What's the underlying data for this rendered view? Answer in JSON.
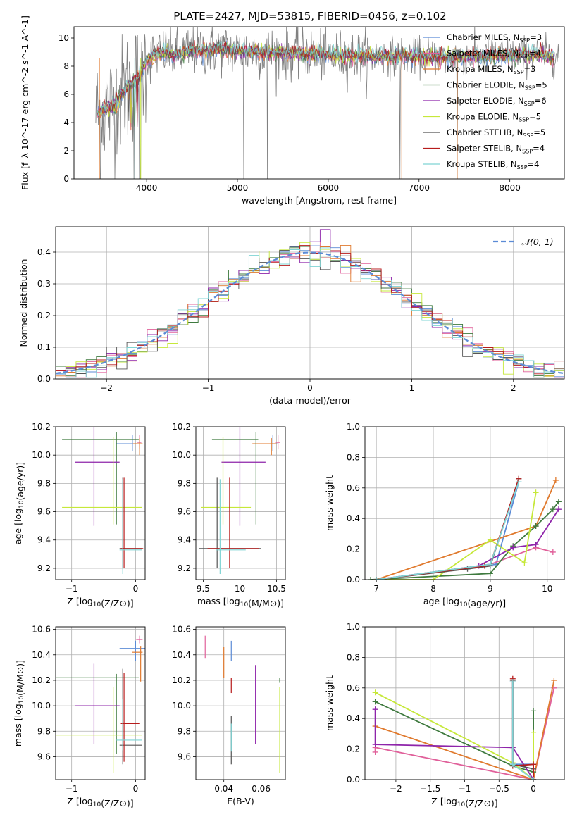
{
  "figure_title": "PLATE=2427, MJD=53815, FIBERID=0456, z=0.102",
  "colors": {
    "Chabrier MILES": "#5b8bd6",
    "Salpeter MILES": "#e0609a",
    "Kroupa MILES": "#e07a2e",
    "Chabrier ELODIE": "#3f7a3f",
    "Salpeter ELODIE": "#8e24aa",
    "Kroupa ELODIE": "#c6e83a",
    "Chabrier STELIB": "#555555",
    "Salpeter STELIB": "#b71c1c",
    "Kroupa STELIB": "#7fd4d4",
    "normal_curve": "#5b8bd6",
    "data_gray": "#808080"
  },
  "chart_data": [
    {
      "id": "spectrum",
      "type": "line",
      "title": "PLATE=2427, MJD=53815, FIBERID=0456, z=0.102",
      "xlabel": "wavelength [Angstrom, rest frame]",
      "ylabel": "Flux [f_λ 10^-17 erg cm^-2 s^-1 A^-1]",
      "xlim": [
        3200,
        8600
      ],
      "ylim": [
        0,
        10.8
      ],
      "xticks": [
        4000,
        5000,
        6000,
        7000,
        8000
      ],
      "yticks": [
        0,
        2,
        4,
        6,
        8,
        10
      ],
      "grid": false,
      "legend_position": "right",
      "legend": [
        {
          "name": "Chabrier MILES",
          "label": "Chabrier MILES, N",
          "sub": "SSP",
          "tail": "=3"
        },
        {
          "name": "Salpeter MILES",
          "label": "Salpeter MILES, N",
          "sub": "SSP",
          "tail": "=4"
        },
        {
          "name": "Kroupa MILES",
          "label": "Kroupa MILES, N",
          "sub": "SSP",
          "tail": "=3"
        },
        {
          "name": "Chabrier ELODIE",
          "label": "Chabrier ELODIE, N",
          "sub": "SSP",
          "tail": "=5"
        },
        {
          "name": "Salpeter ELODIE",
          "label": "Salpeter ELODIE, N",
          "sub": "SSP",
          "tail": "=6"
        },
        {
          "name": "Kroupa ELODIE",
          "label": "Kroupa ELODIE, N",
          "sub": "SSP",
          "tail": "=5"
        },
        {
          "name": "Chabrier STELIB",
          "label": "Chabrier STELIB, N",
          "sub": "SSP",
          "tail": "=5"
        },
        {
          "name": "Salpeter STELIB",
          "label": "Salpeter STELIB, N",
          "sub": "SSP",
          "tail": "=4"
        },
        {
          "name": "Kroupa STELIB",
          "label": "Kroupa STELIB, N",
          "sub": "SSP",
          "tail": "=4"
        }
      ],
      "continuum_model": {
        "x": [
          3450,
          3550,
          3650,
          3700,
          3800,
          3900,
          3950,
          4000,
          4100,
          4200,
          4300,
          4500,
          4800,
          5000,
          5300,
          5600,
          6000,
          6300,
          6600,
          6900,
          7100,
          7300,
          7500,
          7700,
          8000,
          8300,
          8500
        ],
        "y": [
          4.6,
          5.0,
          5.2,
          5.8,
          6.6,
          7.1,
          7.6,
          8.4,
          8.9,
          9.0,
          8.8,
          9.1,
          9.2,
          9.1,
          9.0,
          8.9,
          8.8,
          8.7,
          8.7,
          8.7,
          8.7,
          8.6,
          8.7,
          8.7,
          8.8,
          8.8,
          8.7
        ]
      },
      "data_noise_amplitude": 1.5,
      "deep_drops_x": [
        3490,
        3860,
        3930,
        5070,
        5330,
        6790,
        7420
      ]
    },
    {
      "id": "residuals",
      "type": "step",
      "xlabel": "(data-model)/error",
      "ylabel": "Normed distribution",
      "xlim": [
        -2.5,
        2.5
      ],
      "ylim": [
        0,
        0.48
      ],
      "xticks": [
        -2,
        -1,
        0,
        1,
        2
      ],
      "yticks": [
        0.0,
        0.1,
        0.2,
        0.3,
        0.4
      ],
      "grid": true,
      "legend_position": "top-right",
      "legend_label": "𝒩(0, 1)",
      "bin_width": 0.1
    },
    {
      "id": "age_vs_Z",
      "type": "errorbar",
      "xlabel": "Z [log10(Z/Z⊙)]",
      "ylabel": "age [log10(age/yr)]",
      "xlim": [
        -1.25,
        0.15
      ],
      "ylim": [
        9.12,
        10.2
      ],
      "xticks": [
        -1,
        0
      ],
      "yticks": [
        9.2,
        9.4,
        9.6,
        9.8,
        10.0,
        10.2
      ],
      "grid": true,
      "points": [
        {
          "series": "Chabrier MILES",
          "x": -0.05,
          "xerr": [
            0.25,
            0.15
          ],
          "y": 10.08,
          "yerr": [
            0.05,
            0.06
          ]
        },
        {
          "series": "Salpeter MILES",
          "x": 0.06,
          "xerr": [
            0.03,
            0.03
          ],
          "y": 10.09,
          "yerr": [
            0.05,
            0.05
          ]
        },
        {
          "series": "Kroupa MILES",
          "x": 0.06,
          "xerr": [
            0.1,
            0.05
          ],
          "y": 10.08,
          "yerr": [
            0.08,
            0.04
          ]
        },
        {
          "series": "Chabrier ELODIE",
          "x": -0.3,
          "xerr": [
            0.85,
            0.35
          ],
          "y": 10.11,
          "yerr": [
            0.6,
            0.05
          ]
        },
        {
          "series": "Salpeter ELODIE",
          "x": -0.65,
          "xerr": [
            0.3,
            0.4
          ],
          "y": 9.95,
          "yerr": [
            0.45,
            0.25
          ]
        },
        {
          "series": "Kroupa ELODIE",
          "x": -0.35,
          "xerr": [
            0.8,
            0.45
          ],
          "y": 9.63,
          "yerr": [
            0.12,
            0.5
          ]
        },
        {
          "series": "Chabrier STELIB",
          "x": -0.2,
          "xerr": [
            0.05,
            0.3
          ],
          "y": 9.34,
          "yerr": [
            0.14,
            0.5
          ]
        },
        {
          "series": "Salpeter STELIB",
          "x": -0.18,
          "xerr": [
            0.05,
            0.3
          ],
          "y": 9.34,
          "yerr": [
            0.14,
            0.5
          ]
        },
        {
          "series": "Kroupa STELIB",
          "x": -0.2,
          "xerr": [
            0.05,
            0.3
          ],
          "y": 9.33,
          "yerr": [
            0.17,
            0.5
          ]
        }
      ]
    },
    {
      "id": "age_vs_mass",
      "type": "errorbar",
      "xlabel": "mass [log10(M/M⊙)]",
      "ylabel": "",
      "xlim": [
        9.4,
        10.62
      ],
      "ylim": [
        9.12,
        10.2
      ],
      "xticks": [
        9.5,
        10.0,
        10.5
      ],
      "yticks": [
        9.2,
        9.4,
        9.6,
        9.8,
        10.0,
        10.2
      ],
      "grid": true,
      "points": [
        {
          "series": "Chabrier MILES",
          "x": 10.45,
          "xerr": [
            0.1,
            0.06
          ],
          "y": 10.08,
          "yerr": [
            0.05,
            0.06
          ]
        },
        {
          "series": "Salpeter MILES",
          "x": 10.52,
          "xerr": [
            0.03,
            0.03
          ],
          "y": 10.09,
          "yerr": [
            0.05,
            0.05
          ]
        },
        {
          "series": "Kroupa MILES",
          "x": 10.43,
          "xerr": [
            0.26,
            0.07
          ],
          "y": 10.08,
          "yerr": [
            0.08,
            0.04
          ]
        },
        {
          "series": "Chabrier ELODIE",
          "x": 10.22,
          "xerr": [
            0.6,
            0.03
          ],
          "y": 10.11,
          "yerr": [
            0.6,
            0.05
          ]
        },
        {
          "series": "Salpeter ELODIE",
          "x": 10.0,
          "xerr": [
            0.25,
            0.35
          ],
          "y": 9.95,
          "yerr": [
            0.45,
            0.25
          ]
        },
        {
          "series": "Kroupa ELODIE",
          "x": 9.77,
          "xerr": [
            0.3,
            0.38
          ],
          "y": 9.63,
          "yerr": [
            0.12,
            0.5
          ]
        },
        {
          "series": "Chabrier STELIB",
          "x": 9.69,
          "xerr": [
            0.25,
            0.6
          ],
          "y": 9.34,
          "yerr": [
            0.14,
            0.5
          ]
        },
        {
          "series": "Salpeter STELIB",
          "x": 9.86,
          "xerr": [
            0.3,
            0.4
          ],
          "y": 9.34,
          "yerr": [
            0.14,
            0.5
          ]
        },
        {
          "series": "Kroupa STELIB",
          "x": 9.73,
          "xerr": [
            0.05,
            0.35
          ],
          "y": 9.33,
          "yerr": [
            0.17,
            0.5
          ]
        }
      ]
    },
    {
      "id": "weight_vs_age",
      "type": "line",
      "xlabel": "age [log10(age/yr)]",
      "ylabel": "mass weight",
      "xlim": [
        6.8,
        10.3
      ],
      "ylim": [
        0,
        1.0
      ],
      "xticks": [
        7,
        8,
        9,
        10
      ],
      "yticks": [
        0.0,
        0.2,
        0.4,
        0.6,
        0.8,
        1.0
      ],
      "grid": true,
      "series": [
        {
          "name": "Chabrier MILES",
          "x": [
            7.0,
            9.1,
            9.5
          ],
          "y": [
            0.0,
            0.1,
            0.64
          ]
        },
        {
          "name": "Salpeter MILES",
          "x": [
            7.0,
            9.0,
            9.8,
            10.1
          ],
          "y": [
            0.0,
            0.1,
            0.21,
            0.18
          ]
        },
        {
          "name": "Kroupa MILES",
          "x": [
            7.0,
            9.8,
            10.15
          ],
          "y": [
            0.0,
            0.35,
            0.65
          ]
        },
        {
          "name": "Chabrier ELODIE",
          "x": [
            6.9,
            9.0,
            9.4,
            9.8,
            10.1,
            10.2
          ],
          "y": [
            0.0,
            0.04,
            0.22,
            0.35,
            0.46,
            0.51
          ]
        },
        {
          "name": "Salpeter ELODIE",
          "x": [
            7.0,
            8.8,
            9.4,
            9.8,
            10.2
          ],
          "y": [
            0.0,
            0.09,
            0.21,
            0.23,
            0.46
          ]
        },
        {
          "name": "Kroupa ELODIE",
          "x": [
            7.0,
            8.0,
            9.0,
            9.6,
            9.8
          ],
          "y": [
            0.0,
            0.0,
            0.26,
            0.11,
            0.57
          ]
        },
        {
          "name": "Chabrier STELIB",
          "x": [
            7.0,
            8.6,
            9.0,
            9.5
          ],
          "y": [
            0.0,
            0.07,
            0.09,
            0.66
          ]
        },
        {
          "name": "Salpeter STELIB",
          "x": [
            7.0,
            8.9,
            9.0,
            9.5
          ],
          "y": [
            0.0,
            0.09,
            0.1,
            0.66
          ]
        },
        {
          "name": "Kroupa STELIB",
          "x": [
            7.0,
            9.0,
            9.5
          ],
          "y": [
            0.0,
            0.1,
            0.64
          ]
        }
      ]
    },
    {
      "id": "mass_vs_Z",
      "type": "errorbar",
      "xlabel": "Z [log10(Z/Z⊙)]",
      "ylabel": "mass [log10(M/M⊙)]",
      "xlim": [
        -1.25,
        0.15
      ],
      "ylim": [
        9.42,
        10.62
      ],
      "xticks": [
        -1,
        0
      ],
      "yticks": [
        9.6,
        9.8,
        10.0,
        10.2,
        10.4,
        10.6
      ],
      "grid": true,
      "points": [
        {
          "series": "Chabrier MILES",
          "x": 0.0,
          "xerr": [
            0.25,
            0.15
          ],
          "y": 10.45,
          "yerr": [
            0.1,
            0.06
          ]
        },
        {
          "series": "Salpeter MILES",
          "x": 0.06,
          "xerr": [
            0.05,
            0.05
          ],
          "y": 10.52,
          "yerr": [
            0.03,
            0.03
          ]
        },
        {
          "series": "Kroupa MILES",
          "x": 0.08,
          "xerr": [
            0.13,
            0.03
          ],
          "y": 10.42,
          "yerr": [
            0.23,
            0.05
          ]
        },
        {
          "series": "Chabrier ELODIE",
          "x": -0.3,
          "xerr": [
            0.95,
            0.35
          ],
          "y": 10.22,
          "yerr": [
            0.6,
            0.03
          ]
        },
        {
          "series": "Salpeter ELODIE",
          "x": -0.65,
          "xerr": [
            0.3,
            0.4
          ],
          "y": 10.0,
          "yerr": [
            0.3,
            0.33
          ]
        },
        {
          "series": "Kroupa ELODIE",
          "x": -0.35,
          "xerr": [
            0.9,
            0.45
          ],
          "y": 9.77,
          "yerr": [
            0.3,
            0.38
          ]
        },
        {
          "series": "Chabrier STELIB",
          "x": -0.2,
          "xerr": [
            0.05,
            0.3
          ],
          "y": 9.69,
          "yerr": [
            0.15,
            0.6
          ]
        },
        {
          "series": "Salpeter STELIB",
          "x": -0.18,
          "xerr": [
            0.05,
            0.25
          ],
          "y": 9.86,
          "yerr": [
            0.3,
            0.4
          ]
        },
        {
          "series": "Kroupa STELIB",
          "x": -0.2,
          "xerr": [
            0.1,
            0.3
          ],
          "y": 9.73,
          "yerr": [
            0.08,
            0.32
          ]
        }
      ]
    },
    {
      "id": "mass_vs_ebv",
      "type": "errorbar",
      "xlabel": "E(B-V)",
      "ylabel": "",
      "xlim": [
        0.025,
        0.073
      ],
      "ylim": [
        9.42,
        10.62
      ],
      "xticks": [
        0.04,
        0.06
      ],
      "yticks": [
        9.6,
        9.8,
        10.0,
        10.2,
        10.4,
        10.6
      ],
      "grid": true,
      "points": [
        {
          "series": "Chabrier MILES",
          "x": 0.044,
          "y": 10.45,
          "yerr": [
            0.1,
            0.06
          ]
        },
        {
          "series": "Salpeter MILES",
          "x": 0.03,
          "y": 10.47,
          "yerr": [
            0.1,
            0.08
          ]
        },
        {
          "series": "Kroupa MILES",
          "x": 0.04,
          "y": 10.35,
          "yerr": [
            0.13,
            0.11
          ]
        },
        {
          "series": "Chabrier ELODIE",
          "x": 0.07,
          "y": 10.2,
          "yerr": [
            0.02,
            0.02
          ]
        },
        {
          "series": "Salpeter ELODIE",
          "x": 0.057,
          "y": 10.0,
          "yerr": [
            0.3,
            0.32
          ]
        },
        {
          "series": "Kroupa ELODIE",
          "x": 0.07,
          "y": 9.77,
          "yerr": [
            0.3,
            0.38
          ]
        },
        {
          "series": "Chabrier STELIB",
          "x": 0.044,
          "y": 9.7,
          "yerr": [
            0.16,
            0.22
          ]
        },
        {
          "series": "Salpeter STELIB",
          "x": 0.044,
          "y": 10.17,
          "yerr": [
            0.07,
            0.05
          ]
        },
        {
          "series": "Kroupa STELIB",
          "x": 0.044,
          "y": 9.74,
          "yerr": [
            0.1,
            0.12
          ]
        }
      ]
    },
    {
      "id": "weight_vs_Z",
      "type": "line",
      "xlabel": "Z [log10(Z/Z⊙)]",
      "ylabel": "mass weight",
      "xlim": [
        -2.45,
        0.45
      ],
      "ylim": [
        0,
        1.0
      ],
      "xticks": [
        -2.0,
        -1.5,
        -1.0,
        -0.5,
        0.0
      ],
      "yticks": [
        0.0,
        0.2,
        0.4,
        0.6,
        0.8,
        1.0
      ],
      "grid": true,
      "series": [
        {
          "name": "Chabrier MILES",
          "x": [
            -0.3,
            -0.3,
            0.0,
            0.0
          ],
          "y": [
            0.64,
            0.1,
            0.1,
            0.0
          ]
        },
        {
          "name": "Salpeter MILES",
          "x": [
            -2.3,
            -2.3,
            0.0,
            0.3
          ],
          "y": [
            0.18,
            0.21,
            0.0,
            0.6
          ]
        },
        {
          "name": "Kroupa MILES",
          "x": [
            -2.3,
            0.0,
            0.3
          ],
          "y": [
            0.35,
            0.0,
            0.65
          ]
        },
        {
          "name": "Chabrier ELODIE",
          "x": [
            -2.3,
            -0.3,
            0.0,
            0.0
          ],
          "y": [
            0.51,
            0.09,
            0.05,
            0.45
          ]
        },
        {
          "name": "Salpeter ELODIE",
          "x": [
            -2.3,
            -2.3,
            -0.3,
            0.0
          ],
          "y": [
            0.46,
            0.23,
            0.21,
            0.0
          ]
        },
        {
          "name": "Kroupa ELODIE",
          "x": [
            -2.3,
            -0.3,
            0.0,
            0.0
          ],
          "y": [
            0.57,
            0.11,
            0.0,
            0.31
          ]
        },
        {
          "name": "Chabrier STELIB",
          "x": [
            -0.3,
            -0.3,
            0.0,
            0.0
          ],
          "y": [
            0.65,
            0.1,
            0.07,
            0.0
          ]
        },
        {
          "name": "Salpeter STELIB",
          "x": [
            -0.3,
            -0.3,
            0.0,
            0.0
          ],
          "y": [
            0.66,
            0.09,
            0.1,
            0.0
          ]
        },
        {
          "name": "Kroupa STELIB",
          "x": [
            -0.3,
            -0.3,
            0.0
          ],
          "y": [
            0.64,
            0.1,
            0.0
          ]
        }
      ]
    }
  ]
}
